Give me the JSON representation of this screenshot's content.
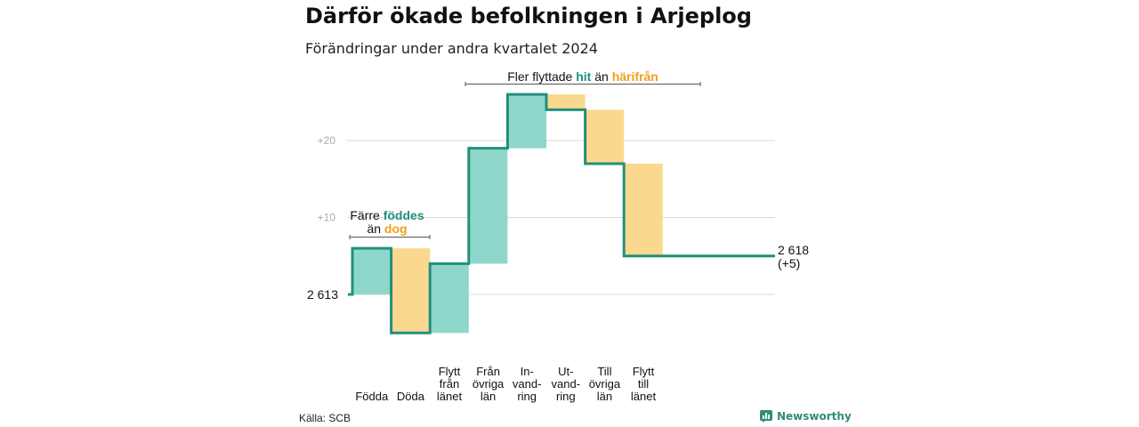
{
  "header": {
    "title": "Därför ökade befolkningen i Arjeplog",
    "subtitle": "Förändringar under andra kvartalet 2024"
  },
  "footer": {
    "source": "Källa: SCB",
    "brand": "Newsworthy"
  },
  "colors": {
    "increase_fill": "#8fd6cb",
    "decrease_fill": "#fbd890",
    "line": "#21907c",
    "teal_text": "#21907c",
    "orange_text": "#f0a01e",
    "grid": "#d9d9d9",
    "tick_text": "#aaaaaa"
  },
  "annotations": {
    "left": {
      "part1": "Färre ",
      "part2": "föddes",
      "part3": "än ",
      "part4": "dog"
    },
    "top": {
      "part1": "Fler flyttade ",
      "part2": "hit",
      "part3": " än ",
      "part4": "härifrån"
    }
  },
  "chart_data": {
    "type": "waterfall",
    "start_value": 2613,
    "start_label": "2 613",
    "end_value": 2618,
    "end_label": "2 618",
    "end_change_label": "(+5)",
    "y_axis": {
      "ticks": [
        "+10",
        "+20"
      ],
      "range": [
        -5,
        26
      ]
    },
    "steps": [
      {
        "label_lines": [
          "Födda"
        ],
        "change": 6
      },
      {
        "label_lines": [
          "Döda"
        ],
        "change": -11
      },
      {
        "label_lines": [
          "Flytt",
          "från",
          "länet"
        ],
        "change": 9
      },
      {
        "label_lines": [
          "Från",
          "övriga",
          "län"
        ],
        "change": 15
      },
      {
        "label_lines": [
          "In-",
          "vand-",
          "ring"
        ],
        "change": 7
      },
      {
        "label_lines": [
          "Ut-",
          "vand-",
          "ring"
        ],
        "change": -2
      },
      {
        "label_lines": [
          "Till",
          "övriga",
          "län"
        ],
        "change": -7
      },
      {
        "label_lines": [
          "Flytt",
          "till",
          "länet"
        ],
        "change": -12
      }
    ]
  }
}
